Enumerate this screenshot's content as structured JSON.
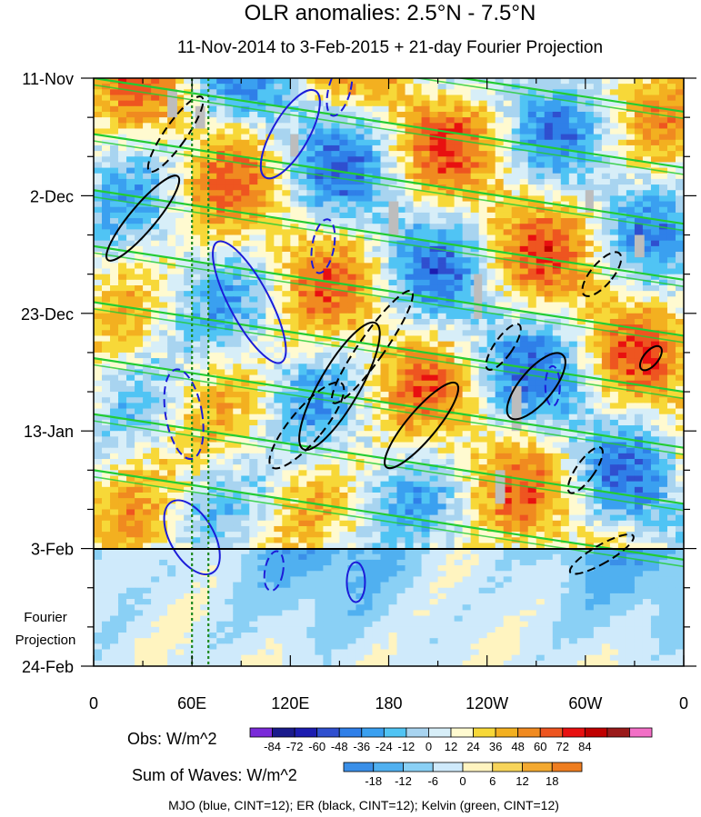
{
  "chart_data": {
    "type": "heatmap",
    "title": "OLR anomalies: 2.5°N - 7.5°N",
    "subtitle": "11-Nov-2014 to 3-Feb-2015 + 21-day Fourier Projection",
    "xlabel": "",
    "ylabel": "",
    "x_ticks": [
      "0",
      "60E",
      "120E",
      "180",
      "120W",
      "60W",
      "0"
    ],
    "x_tick_lon": [
      0,
      60,
      120,
      180,
      240,
      300,
      360
    ],
    "xlim": [
      0,
      360
    ],
    "y_ticks": [
      "11-Nov",
      "2-Dec",
      "23-Dec",
      "13-Jan",
      "3-Feb",
      "24-Feb"
    ],
    "y_tick_day": [
      0,
      21,
      42,
      63,
      84,
      105
    ],
    "ylim_days": [
      0,
      105
    ],
    "projection_start_day": 84,
    "projection_label": [
      "Fourier",
      "Projection"
    ],
    "vertical_markers_lon": [
      60,
      70
    ],
    "vertical_marker_color": "#1f8a1f",
    "obs_colorbar": {
      "label": "Obs: W/m^2",
      "ticks": [
        "-84",
        "-72",
        "-60",
        "-48",
        "-36",
        "-24",
        "-12",
        "0",
        "12",
        "24",
        "36",
        "48",
        "60",
        "72",
        "84"
      ],
      "colors": [
        "#7a2ad9",
        "#1a1a8c",
        "#1c1cb0",
        "#2f4fcf",
        "#2f7fe8",
        "#3aa0f0",
        "#50c4f4",
        "#a8d4f0",
        "#d7eef8",
        "#fffad0",
        "#f7d838",
        "#f3b020",
        "#f08a20",
        "#ee5520",
        "#e81010",
        "#c00000",
        "#9a1a1a",
        "#f26fc6"
      ]
    },
    "waves_colorbar": {
      "label": "Sum of Waves: W/m^2",
      "ticks": [
        "-18",
        "-12",
        "-6",
        "0",
        "6",
        "12",
        "18"
      ],
      "colors": [
        "#3a8fe8",
        "#50b0f0",
        "#8ad0f5",
        "#cfeafb",
        "#fff4c0",
        "#f7d45a",
        "#f3a930",
        "#ee7d20"
      ]
    },
    "footer": "MJO (blue, CINT=12); ER (black, CINT=12); Kelvin (green, CINT=12)",
    "series": [
      {
        "name": "MJO",
        "color": "#1c1cd8"
      },
      {
        "name": "ER",
        "color": "#000000"
      },
      {
        "name": "Kelvin",
        "color": "#22cc33"
      }
    ]
  }
}
